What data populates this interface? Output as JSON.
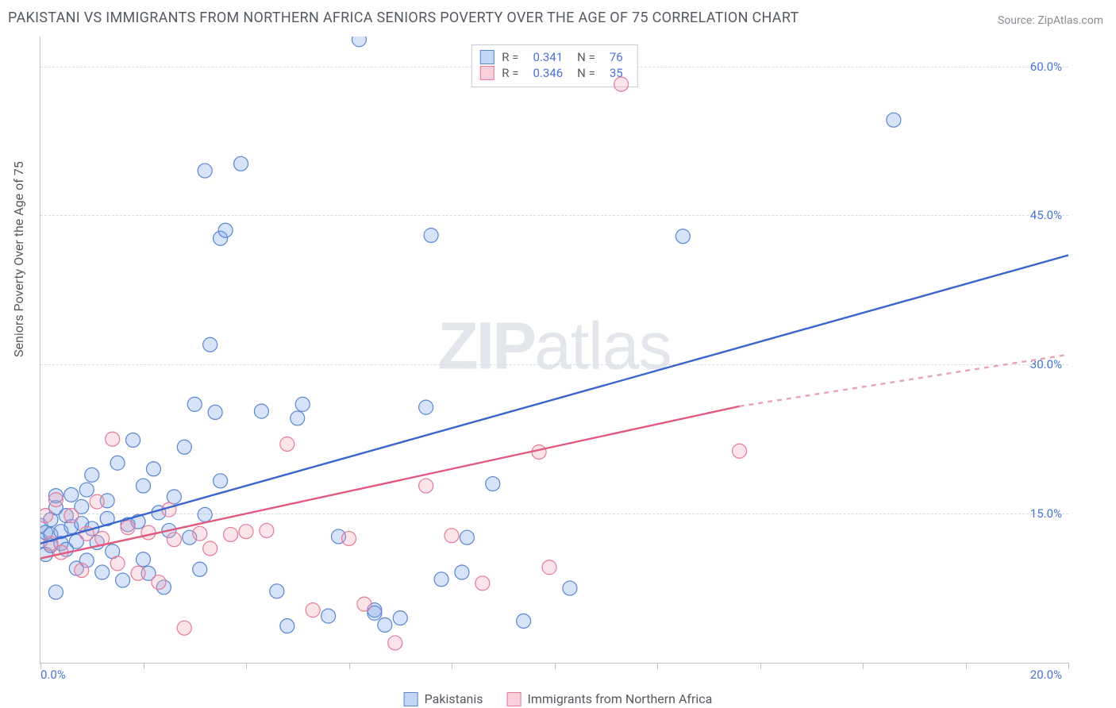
{
  "title": "PAKISTANI VS IMMIGRANTS FROM NORTHERN AFRICA SENIORS POVERTY OVER THE AGE OF 75 CORRELATION CHART",
  "source": "Source: ZipAtlas.com",
  "yAxisLabel": "Seniors Poverty Over the Age of 75",
  "watermark": {
    "z": "ZIP",
    "a": "atlas"
  },
  "chart": {
    "type": "scatter",
    "background_color": "#ffffff",
    "grid_color": "#d8dde3",
    "axis_color": "#bfc4cb",
    "point_radius": 9,
    "xlim": [
      0,
      20.0
    ],
    "ylim": [
      0,
      63.0
    ],
    "x_tick_positions": [
      0,
      2,
      4,
      6,
      8,
      10,
      12,
      14,
      16,
      18,
      20
    ],
    "x_tick_labels": {
      "0": "0.0%",
      "20": "20.0%"
    },
    "y_grid": [
      15.0,
      30.0,
      45.0,
      60.0
    ],
    "y_grid_labels": [
      "15.0%",
      "30.0%",
      "45.0%",
      "60.0%"
    ],
    "series": [
      {
        "key": "pakistanis",
        "label": "Pakistanis",
        "color_fill": "#7aa3e8",
        "color_stroke": "#5a85d0",
        "R": "0.341",
        "N": "76",
        "trend": {
          "x1": 0.0,
          "y1": 12.0,
          "x2": 20.0,
          "y2": 41.0,
          "dash": false
        },
        "points": [
          [
            0.0,
            12.3
          ],
          [
            0.0,
            13.8
          ],
          [
            0.1,
            10.9
          ],
          [
            0.1,
            13.1
          ],
          [
            0.2,
            14.4
          ],
          [
            0.2,
            11.8
          ],
          [
            0.2,
            12.9
          ],
          [
            0.3,
            15.6
          ],
          [
            0.3,
            7.1
          ],
          [
            0.4,
            13.2
          ],
          [
            0.4,
            12.0
          ],
          [
            0.5,
            14.8
          ],
          [
            0.5,
            11.4
          ],
          [
            0.6,
            16.9
          ],
          [
            0.6,
            13.7
          ],
          [
            0.7,
            9.5
          ],
          [
            0.7,
            12.2
          ],
          [
            0.8,
            14.0
          ],
          [
            0.8,
            15.7
          ],
          [
            0.9,
            17.4
          ],
          [
            0.9,
            10.3
          ],
          [
            1.0,
            13.5
          ],
          [
            1.0,
            18.9
          ],
          [
            1.1,
            12.1
          ],
          [
            1.2,
            9.1
          ],
          [
            1.3,
            14.5
          ],
          [
            1.3,
            16.3
          ],
          [
            1.4,
            11.2
          ],
          [
            1.5,
            20.1
          ],
          [
            1.6,
            8.3
          ],
          [
            1.7,
            13.9
          ],
          [
            1.8,
            22.4
          ],
          [
            1.9,
            14.2
          ],
          [
            2.0,
            17.8
          ],
          [
            2.0,
            10.4
          ],
          [
            2.1,
            9.0
          ],
          [
            2.2,
            19.5
          ],
          [
            2.3,
            15.1
          ],
          [
            2.4,
            7.6
          ],
          [
            2.5,
            13.3
          ],
          [
            2.6,
            16.7
          ],
          [
            2.8,
            21.7
          ],
          [
            2.9,
            12.6
          ],
          [
            3.0,
            26.0
          ],
          [
            3.1,
            9.4
          ],
          [
            3.2,
            14.9
          ],
          [
            3.2,
            49.5
          ],
          [
            3.3,
            32.0
          ],
          [
            3.4,
            25.2
          ],
          [
            3.5,
            18.3
          ],
          [
            3.5,
            42.7
          ],
          [
            3.6,
            43.5
          ],
          [
            3.9,
            50.2
          ],
          [
            4.3,
            25.3
          ],
          [
            4.6,
            7.2
          ],
          [
            4.8,
            3.7
          ],
          [
            5.0,
            24.6
          ],
          [
            5.1,
            26.0
          ],
          [
            5.6,
            4.7
          ],
          [
            5.8,
            12.7
          ],
          [
            6.2,
            62.7
          ],
          [
            6.5,
            5.3
          ],
          [
            6.5,
            5.0
          ],
          [
            6.7,
            3.8
          ],
          [
            7.0,
            4.5
          ],
          [
            7.5,
            25.7
          ],
          [
            7.6,
            43.0
          ],
          [
            7.8,
            8.4
          ],
          [
            8.2,
            9.1
          ],
          [
            8.3,
            12.6
          ],
          [
            8.8,
            18.0
          ],
          [
            9.4,
            4.2
          ],
          [
            10.3,
            7.5
          ],
          [
            12.5,
            42.9
          ],
          [
            16.6,
            54.6
          ],
          [
            0.3,
            16.8
          ]
        ]
      },
      {
        "key": "naf",
        "label": "Immigrants from Northern Africa",
        "color_fill": "#f2a8bb",
        "color_stroke": "#e67a98",
        "R": "0.346",
        "N": "35",
        "trend": {
          "x1": 0.0,
          "y1": 10.5,
          "x2": 13.6,
          "y2": 25.8,
          "dash": false
        },
        "trend_extend": {
          "x1": 13.6,
          "y1": 25.8,
          "x2": 20.0,
          "y2": 31.0,
          "dash": true
        },
        "points": [
          [
            0.1,
            14.8
          ],
          [
            0.2,
            12.0
          ],
          [
            0.3,
            16.4
          ],
          [
            0.4,
            11.1
          ],
          [
            0.6,
            14.8
          ],
          [
            0.8,
            9.3
          ],
          [
            0.9,
            13.0
          ],
          [
            1.1,
            16.2
          ],
          [
            1.2,
            12.5
          ],
          [
            1.4,
            22.5
          ],
          [
            1.5,
            10.0
          ],
          [
            1.7,
            13.6
          ],
          [
            1.9,
            9.0
          ],
          [
            2.1,
            13.1
          ],
          [
            2.3,
            8.1
          ],
          [
            2.5,
            15.4
          ],
          [
            2.6,
            12.4
          ],
          [
            2.8,
            3.5
          ],
          [
            3.1,
            13.0
          ],
          [
            3.3,
            11.5
          ],
          [
            3.7,
            12.9
          ],
          [
            4.0,
            13.2
          ],
          [
            4.4,
            13.3
          ],
          [
            4.8,
            22.0
          ],
          [
            5.3,
            5.3
          ],
          [
            6.0,
            12.5
          ],
          [
            6.3,
            5.9
          ],
          [
            6.9,
            2.0
          ],
          [
            7.5,
            17.8
          ],
          [
            8.0,
            12.8
          ],
          [
            8.6,
            8.0
          ],
          [
            9.7,
            21.2
          ],
          [
            9.9,
            9.6
          ],
          [
            11.3,
            58.2
          ],
          [
            13.6,
            21.3
          ]
        ]
      }
    ],
    "legend": {
      "pos": "bottom",
      "stats_labels": {
        "R": "R =",
        "N": "N ="
      }
    }
  }
}
